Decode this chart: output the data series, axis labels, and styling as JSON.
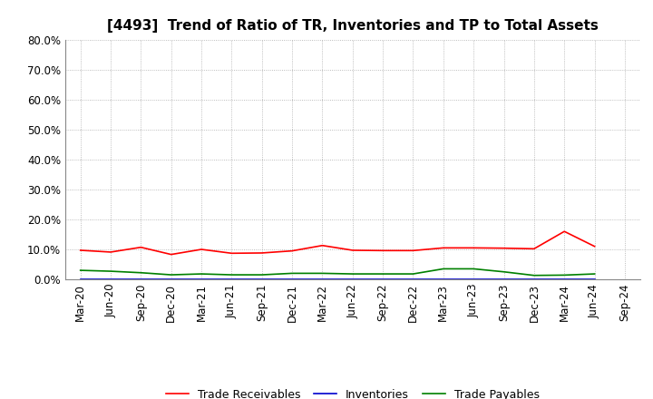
{
  "title": "[4493]  Trend of Ratio of TR, Inventories and TP to Total Assets",
  "x_labels": [
    "Mar-20",
    "Jun-20",
    "Sep-20",
    "Dec-20",
    "Mar-21",
    "Jun-21",
    "Sep-21",
    "Dec-21",
    "Mar-22",
    "Jun-22",
    "Sep-22",
    "Dec-22",
    "Mar-23",
    "Jun-23",
    "Sep-23",
    "Dec-23",
    "Mar-24",
    "Jun-24",
    "Sep-24"
  ],
  "trade_receivables": [
    0.097,
    0.091,
    0.107,
    0.083,
    0.1,
    0.087,
    0.088,
    0.095,
    0.113,
    0.097,
    0.096,
    0.096,
    0.105,
    0.105,
    0.104,
    0.102,
    0.16,
    0.11,
    null
  ],
  "inventories": [
    0.0,
    0.0,
    0.0,
    0.0,
    0.0,
    0.0,
    0.0,
    0.0,
    0.0,
    0.0,
    0.0,
    0.0,
    0.0,
    0.0,
    0.0,
    0.0,
    0.0,
    0.0,
    null
  ],
  "trade_payables": [
    0.03,
    0.027,
    0.022,
    0.015,
    0.018,
    0.015,
    0.015,
    0.02,
    0.02,
    0.018,
    0.018,
    0.018,
    0.035,
    0.035,
    0.025,
    0.013,
    0.014,
    0.018,
    null
  ],
  "tr_color": "#ff0000",
  "inv_color": "#0000cd",
  "tp_color": "#008000",
  "ylim": [
    0.0,
    0.8
  ],
  "yticks": [
    0.0,
    0.1,
    0.2,
    0.3,
    0.4,
    0.5,
    0.6,
    0.7,
    0.8
  ],
  "grid_color": "#aaaaaa",
  "background_color": "#ffffff",
  "legend_labels": [
    "Trade Receivables",
    "Inventories",
    "Trade Payables"
  ],
  "title_fontsize": 11,
  "tick_fontsize": 8.5,
  "legend_fontsize": 9
}
